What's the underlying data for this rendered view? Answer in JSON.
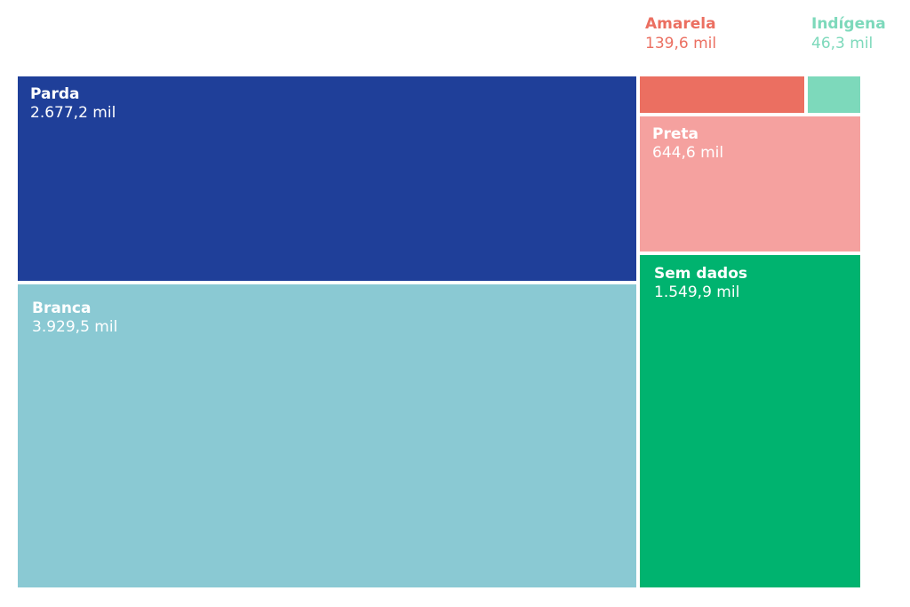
{
  "chart_data": {
    "type": "treemap",
    "unit": "mil",
    "items": [
      {
        "name": "Parda",
        "value": 2677.2,
        "label_value": "2.677,2 mil",
        "color": "#1f3f99"
      },
      {
        "name": "Branca",
        "value": 3929.5,
        "label_value": "3.929,5 mil",
        "color": "#8ac9d3"
      },
      {
        "name": "Amarela",
        "value": 139.6,
        "label_value": "139,6 mil",
        "color": "#eb6f61"
      },
      {
        "name": "Indígena",
        "value": 46.3,
        "label_value": "46,3 mil",
        "color": "#7dd9bb"
      },
      {
        "name": "Preta",
        "value": 644.6,
        "label_value": "644,6 mil",
        "color": "#f5a19f"
      },
      {
        "name": "Sem dados",
        "value": 1549.9,
        "label_value": "1.549,9 mil",
        "color": "#00b36f"
      }
    ]
  }
}
